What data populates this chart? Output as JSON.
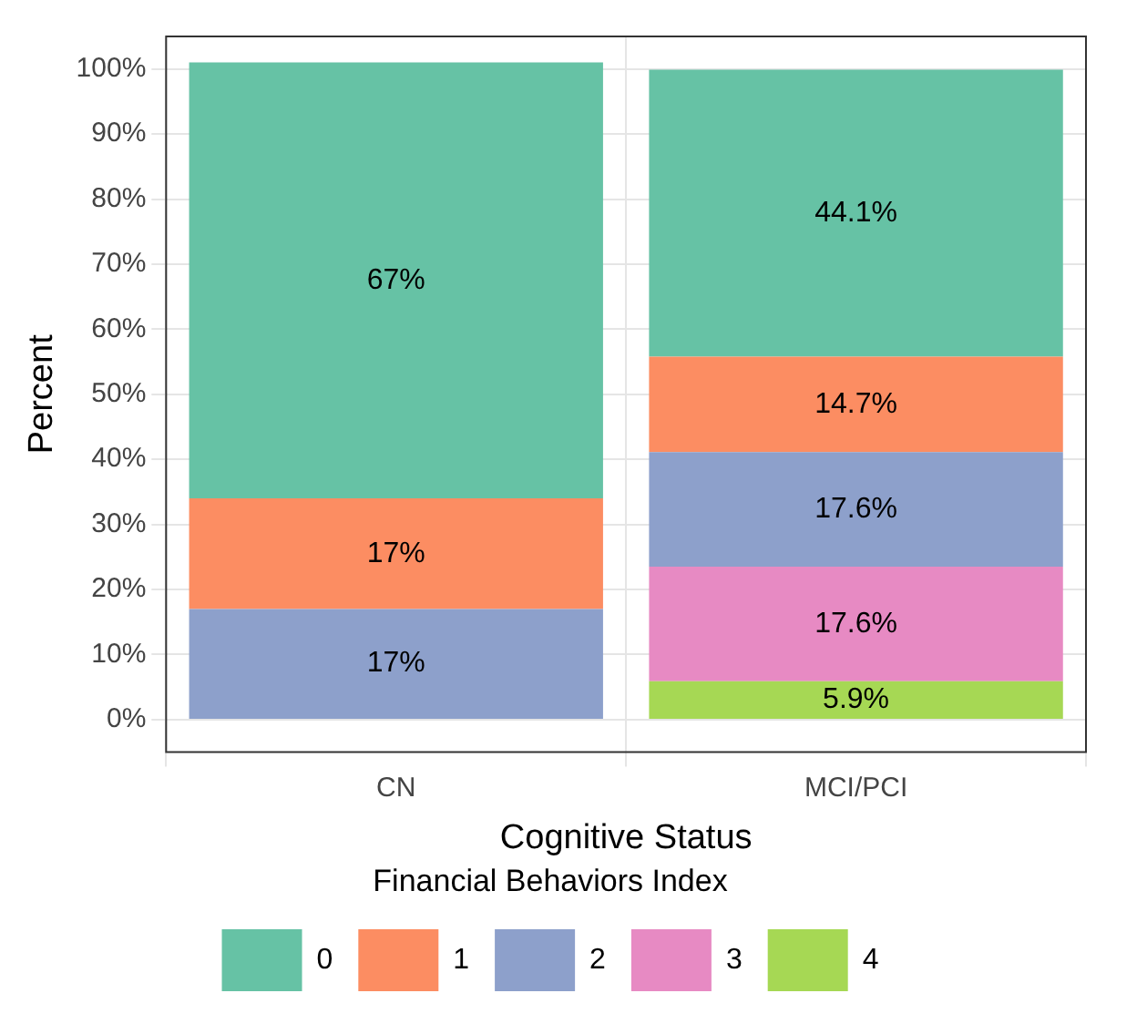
{
  "chart_data": {
    "type": "bar",
    "stacked": true,
    "xlabel": "Cognitive Status",
    "ylabel": "Percent",
    "legend_title": "Financial Behaviors Index",
    "categories": [
      "CN",
      "MCI/PCI"
    ],
    "series": [
      {
        "name": "4",
        "color": "#a6d854",
        "values": [
          null,
          5.9
        ],
        "value_labels": [
          null,
          "5.9%"
        ]
      },
      {
        "name": "3",
        "color": "#e78ac3",
        "values": [
          null,
          17.6
        ],
        "value_labels": [
          null,
          "17.6%"
        ]
      },
      {
        "name": "2",
        "color": "#8da0cb",
        "values": [
          17,
          17.6
        ],
        "value_labels": [
          "17%",
          "17.6%"
        ]
      },
      {
        "name": "1",
        "color": "#fc8d62",
        "values": [
          17,
          14.7
        ],
        "value_labels": [
          "17%",
          "14.7%"
        ]
      },
      {
        "name": "0",
        "color": "#66c2a5",
        "values": [
          67,
          44.1
        ],
        "value_labels": [
          "67%",
          "44.1%"
        ]
      }
    ],
    "ylim": [
      -5,
      105
    ],
    "yticks": [
      {
        "value": 0,
        "label": "0%"
      },
      {
        "value": 10,
        "label": "10%"
      },
      {
        "value": 20,
        "label": "20%"
      },
      {
        "value": 30,
        "label": "30%"
      },
      {
        "value": 40,
        "label": "40%"
      },
      {
        "value": 50,
        "label": "50%"
      },
      {
        "value": 60,
        "label": "60%"
      },
      {
        "value": 70,
        "label": "70%"
      },
      {
        "value": 80,
        "label": "80%"
      },
      {
        "value": 90,
        "label": "90%"
      },
      {
        "value": 100,
        "label": "100%"
      }
    ],
    "grid": true,
    "legend": "bottom"
  }
}
